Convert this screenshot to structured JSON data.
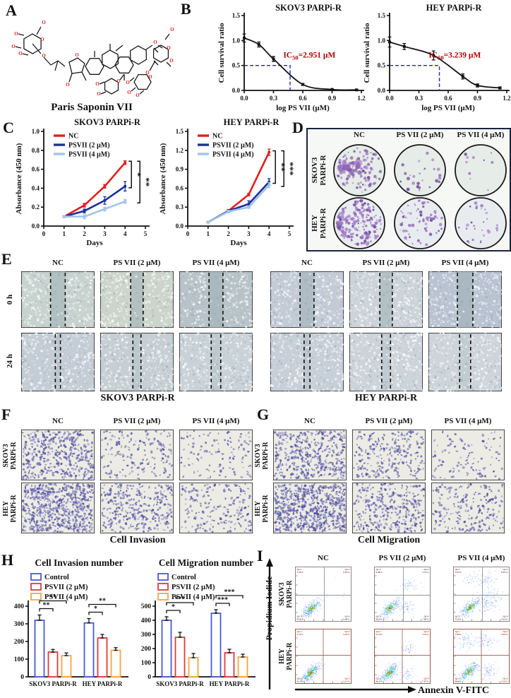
{
  "treatments": [
    "NC",
    "PS VII (2 µM)",
    "PS VII (4 µM)"
  ],
  "cell_lines": [
    "SKOV3 PARPi-R",
    "HEY PARPi-R"
  ],
  "cell_lines_2line": [
    [
      "SKOV3",
      "PARPi-R"
    ],
    [
      "HEY",
      "PARPi-R"
    ]
  ],
  "panelA": {
    "letter": "A",
    "caption": "Paris Saponin VII"
  },
  "panelB": {
    "letter": "B"
  },
  "panelC": {
    "letter": "C"
  },
  "panelD": {
    "letter": "D"
  },
  "panelE": {
    "letter": "E",
    "row_labels": [
      "0 h",
      "24 h"
    ],
    "captions": [
      "SKOV3 PARPi-R",
      "HEY PARPi-R"
    ]
  },
  "panelF": {
    "letter": "F",
    "caption": "Cell Invasion"
  },
  "panelG": {
    "letter": "G",
    "caption": "Cell Migration"
  },
  "panelH": {
    "letter": "H"
  },
  "panelI": {
    "letter": "I",
    "x_axis": "Annexin V-FITC",
    "y_axis": "Propidium Iodide",
    "plots": [
      {
        "row": "SKOV3 PARPi-R",
        "treatment": "NC",
        "quadrants": [
          "Q2-1",
          "Q2-2",
          "Q2-3",
          "Q2-4"
        ],
        "percents": [
          "2.35%",
          "0.87%",
          "95.8%",
          "0.98%"
        ]
      },
      {
        "row": "SKOV3 PARPi-R",
        "treatment": "PS VII (2 µM)",
        "quadrants": [
          "Q2-1",
          "Q2-2",
          "Q2-3",
          "Q2-4"
        ],
        "percents": [
          "0.48%",
          "2.71%",
          "89.2%",
          "7.58%"
        ]
      },
      {
        "row": "SKOV3 PARPi-R",
        "treatment": "PS VII (4 µM)",
        "quadrants": [
          "Q2-1",
          "Q2-2",
          "Q2-3",
          "Q2-4"
        ],
        "percents": [
          "1.03%",
          "8.67%",
          "75.9%",
          "14.3%"
        ]
      },
      {
        "row": "HEY PARPi-R",
        "treatment": "NC",
        "quadrants": [
          "Q2-1",
          "Q2-2",
          "Q2-3",
          "Q2-4"
        ],
        "percents": [
          "2.12%",
          "3.23%",
          "92.5%",
          "2.11%"
        ]
      },
      {
        "row": "HEY PARPi-R",
        "treatment": "PS VII (2 µM)",
        "quadrants": [
          "Q2-1",
          "Q2-2",
          "Q2-3",
          "Q2-4"
        ],
        "percents": [
          "2.13%",
          "3.72%",
          "86.2%",
          "7.87%"
        ]
      },
      {
        "row": "HEY PARPi-R",
        "treatment": "PS VII (4 µM)",
        "quadrants": [
          "Q2-1",
          "Q2-2",
          "Q2-3",
          "Q2-4"
        ],
        "percents": [
          "7.08%",
          "9.61%",
          "69.4%",
          "13.9%"
        ]
      }
    ]
  },
  "colors": {
    "nc_red": "#e0201d",
    "psvii2_blue": "#1c2f9e",
    "psvii4_lightblue": "#9fc5ea",
    "control_blue": "#4a5ad8",
    "bar_red": "#e23a3a",
    "bar_orange": "#f6a640",
    "ic50_red": "#b00000",
    "dash_blue": "#2424bb",
    "colony_purple": "#8a5fb5"
  },
  "chart_data": [
    {
      "id": "B1",
      "type": "line",
      "subtype": "dose-response",
      "title": "SKOV3 PARPi-R",
      "xlabel": "log PS VII (µM)",
      "ylabel": "Cell survival ratio",
      "xlim": [
        0,
        1.2
      ],
      "ylim": [
        0,
        1.5
      ],
      "xticks": [
        0,
        0.3,
        0.6,
        0.9,
        1.2
      ],
      "yticks": [
        0,
        0.5,
        1.0,
        1.5
      ],
      "x": [
        0,
        0.15,
        0.3,
        0.6,
        0.9,
        1.15
      ],
      "y": [
        1.05,
        0.92,
        0.63,
        0.12,
        0.02,
        0.01
      ],
      "err": [
        0.08,
        0.05,
        0.05,
        0.02,
        0.01,
        0.01
      ],
      "ic50": {
        "prefix": "IC",
        "sub": "50",
        "rest": "=2.951 µM",
        "value_uM": 2.951
      },
      "dash_x": 0.47,
      "dash_y": 0.5
    },
    {
      "id": "B2",
      "type": "line",
      "subtype": "dose-response",
      "title": "HEY PARPi-R",
      "xlabel": "log PS VII (µM)",
      "ylabel": "Cell survival ratio",
      "xlim": [
        0,
        1.2
      ],
      "ylim": [
        0,
        1.5
      ],
      "xticks": [
        0,
        0.3,
        0.6,
        0.9,
        1.2
      ],
      "yticks": [
        0,
        0.5,
        1.0,
        1.5
      ],
      "x": [
        0,
        0.15,
        0.45,
        0.75,
        0.9,
        1.13
      ],
      "y": [
        0.97,
        0.88,
        0.7,
        0.28,
        0.1,
        0.05
      ],
      "err": [
        0.1,
        0.06,
        0.09,
        0.05,
        0.03,
        0.02
      ],
      "ic50": {
        "prefix": "IC",
        "sub": "50",
        "rest": "=3.239 µM",
        "value_uM": 3.239
      },
      "dash_x": 0.51,
      "dash_y": 0.5
    },
    {
      "id": "C1",
      "type": "line",
      "subtype": "growth",
      "title": "SKOV3 PARPi-R",
      "xlabel": "Days",
      "ylabel": "Absorbance (450 nm)",
      "xlim": [
        0,
        5
      ],
      "ylim": [
        0,
        1.0
      ],
      "xticks": [
        0,
        1,
        2,
        3,
        4,
        5
      ],
      "yticks": [
        0,
        0.2,
        0.4,
        0.6,
        0.8,
        1.0
      ],
      "x": [
        1,
        2,
        3,
        4
      ],
      "series": [
        {
          "name": "NC",
          "color": "#e0201d",
          "values": [
            0.1,
            0.22,
            0.42,
            0.67
          ],
          "err": [
            0.01,
            0.02,
            0.02,
            0.02
          ]
        },
        {
          "name": "PSVII (2 µM)",
          "color": "#1c2f9e",
          "values": [
            0.1,
            0.16,
            0.27,
            0.42
          ],
          "err": [
            0.01,
            0.02,
            0.04,
            0.05
          ]
        },
        {
          "name": "PSVII (4 µM)",
          "color": "#9fc5ea",
          "values": [
            0.1,
            0.1,
            0.18,
            0.26
          ],
          "err": [
            0.01,
            0.02,
            0.02,
            0.02
          ]
        }
      ],
      "sig": [
        {
          "a": 0,
          "b": 1,
          "label": "*"
        },
        {
          "a": 0,
          "b": 2,
          "label": "**"
        }
      ]
    },
    {
      "id": "C2",
      "type": "line",
      "subtype": "growth",
      "title": "HEY PARPi-R",
      "xlabel": "Days",
      "ylabel": "Absorbance (450 nm)",
      "xlim": [
        0,
        5
      ],
      "ylim": [
        0,
        1.5
      ],
      "xticks": [
        0,
        1,
        2,
        3,
        4,
        5
      ],
      "yticks": [
        0,
        0.3,
        0.6,
        0.9,
        1.2,
        1.5
      ],
      "x": [
        1,
        2,
        3,
        4
      ],
      "series": [
        {
          "name": "NC",
          "color": "#e0201d",
          "values": [
            0.06,
            0.24,
            0.5,
            1.17
          ],
          "err": [
            0.01,
            0.02,
            0.02,
            0.05
          ]
        },
        {
          "name": "PSVII (2 µM)",
          "color": "#1c2f9e",
          "values": [
            0.06,
            0.24,
            0.35,
            0.7
          ],
          "err": [
            0.01,
            0.02,
            0.05,
            0.05
          ]
        },
        {
          "name": "PSVII (4 µM)",
          "color": "#9fc5ea",
          "values": [
            0.06,
            0.23,
            0.3,
            0.65
          ],
          "err": [
            0.01,
            0.02,
            0.02,
            0.04
          ]
        }
      ],
      "sig": [
        {
          "a": 0,
          "b": 1,
          "label": "**"
        },
        {
          "a": 0,
          "b": 2,
          "label": "***"
        }
      ]
    },
    {
      "id": "H1",
      "type": "bar",
      "title": "Cell Invasion number",
      "categories": [
        "SKOV3 PARPi-R",
        "HEY PARPi-R"
      ],
      "ylim": [
        0,
        400
      ],
      "yticks": [
        0,
        100,
        200,
        300,
        400
      ],
      "series": [
        {
          "name": "Control",
          "color": "#4a5ad8",
          "values": [
            320,
            305
          ],
          "err": [
            30,
            25
          ]
        },
        {
          "name": "PSVII (2 µM)",
          "color": "#e23a3a",
          "values": [
            140,
            220
          ],
          "err": [
            15,
            20
          ]
        },
        {
          "name": "PSVII (4 µM)",
          "color": "#f6a640",
          "values": [
            120,
            150
          ],
          "err": [
            15,
            15
          ]
        }
      ],
      "sig": [
        {
          "cat": 0,
          "a": 0,
          "b": 1,
          "label": "**"
        },
        {
          "cat": 0,
          "a": 0,
          "b": 2,
          "label": "**"
        },
        {
          "cat": 1,
          "a": 0,
          "b": 1,
          "label": "*"
        },
        {
          "cat": 1,
          "a": 0,
          "b": 2,
          "label": "**"
        }
      ]
    },
    {
      "id": "H2",
      "type": "bar",
      "title": "Cell Migration number",
      "categories": [
        "SKOV3 PARPi-R",
        "HEY PARPi-R"
      ],
      "ylim": [
        0,
        500
      ],
      "yticks": [
        0,
        100,
        200,
        300,
        400,
        500
      ],
      "series": [
        {
          "name": "Control",
          "color": "#4a5ad8",
          "values": [
            400,
            450
          ],
          "err": [
            25,
            25
          ]
        },
        {
          "name": "PSVII (2 µM)",
          "color": "#e23a3a",
          "values": [
            280,
            170
          ],
          "err": [
            35,
            25
          ]
        },
        {
          "name": "PSVII (4 µM)",
          "color": "#f6a640",
          "values": [
            135,
            140
          ],
          "err": [
            30,
            20
          ]
        }
      ],
      "sig": [
        {
          "cat": 0,
          "a": 0,
          "b": 1,
          "label": "*"
        },
        {
          "cat": 0,
          "a": 0,
          "b": 2,
          "label": "***"
        },
        {
          "cat": 1,
          "a": 0,
          "b": 1,
          "label": "***"
        },
        {
          "cat": 1,
          "a": 0,
          "b": 2,
          "label": "***"
        }
      ]
    }
  ]
}
